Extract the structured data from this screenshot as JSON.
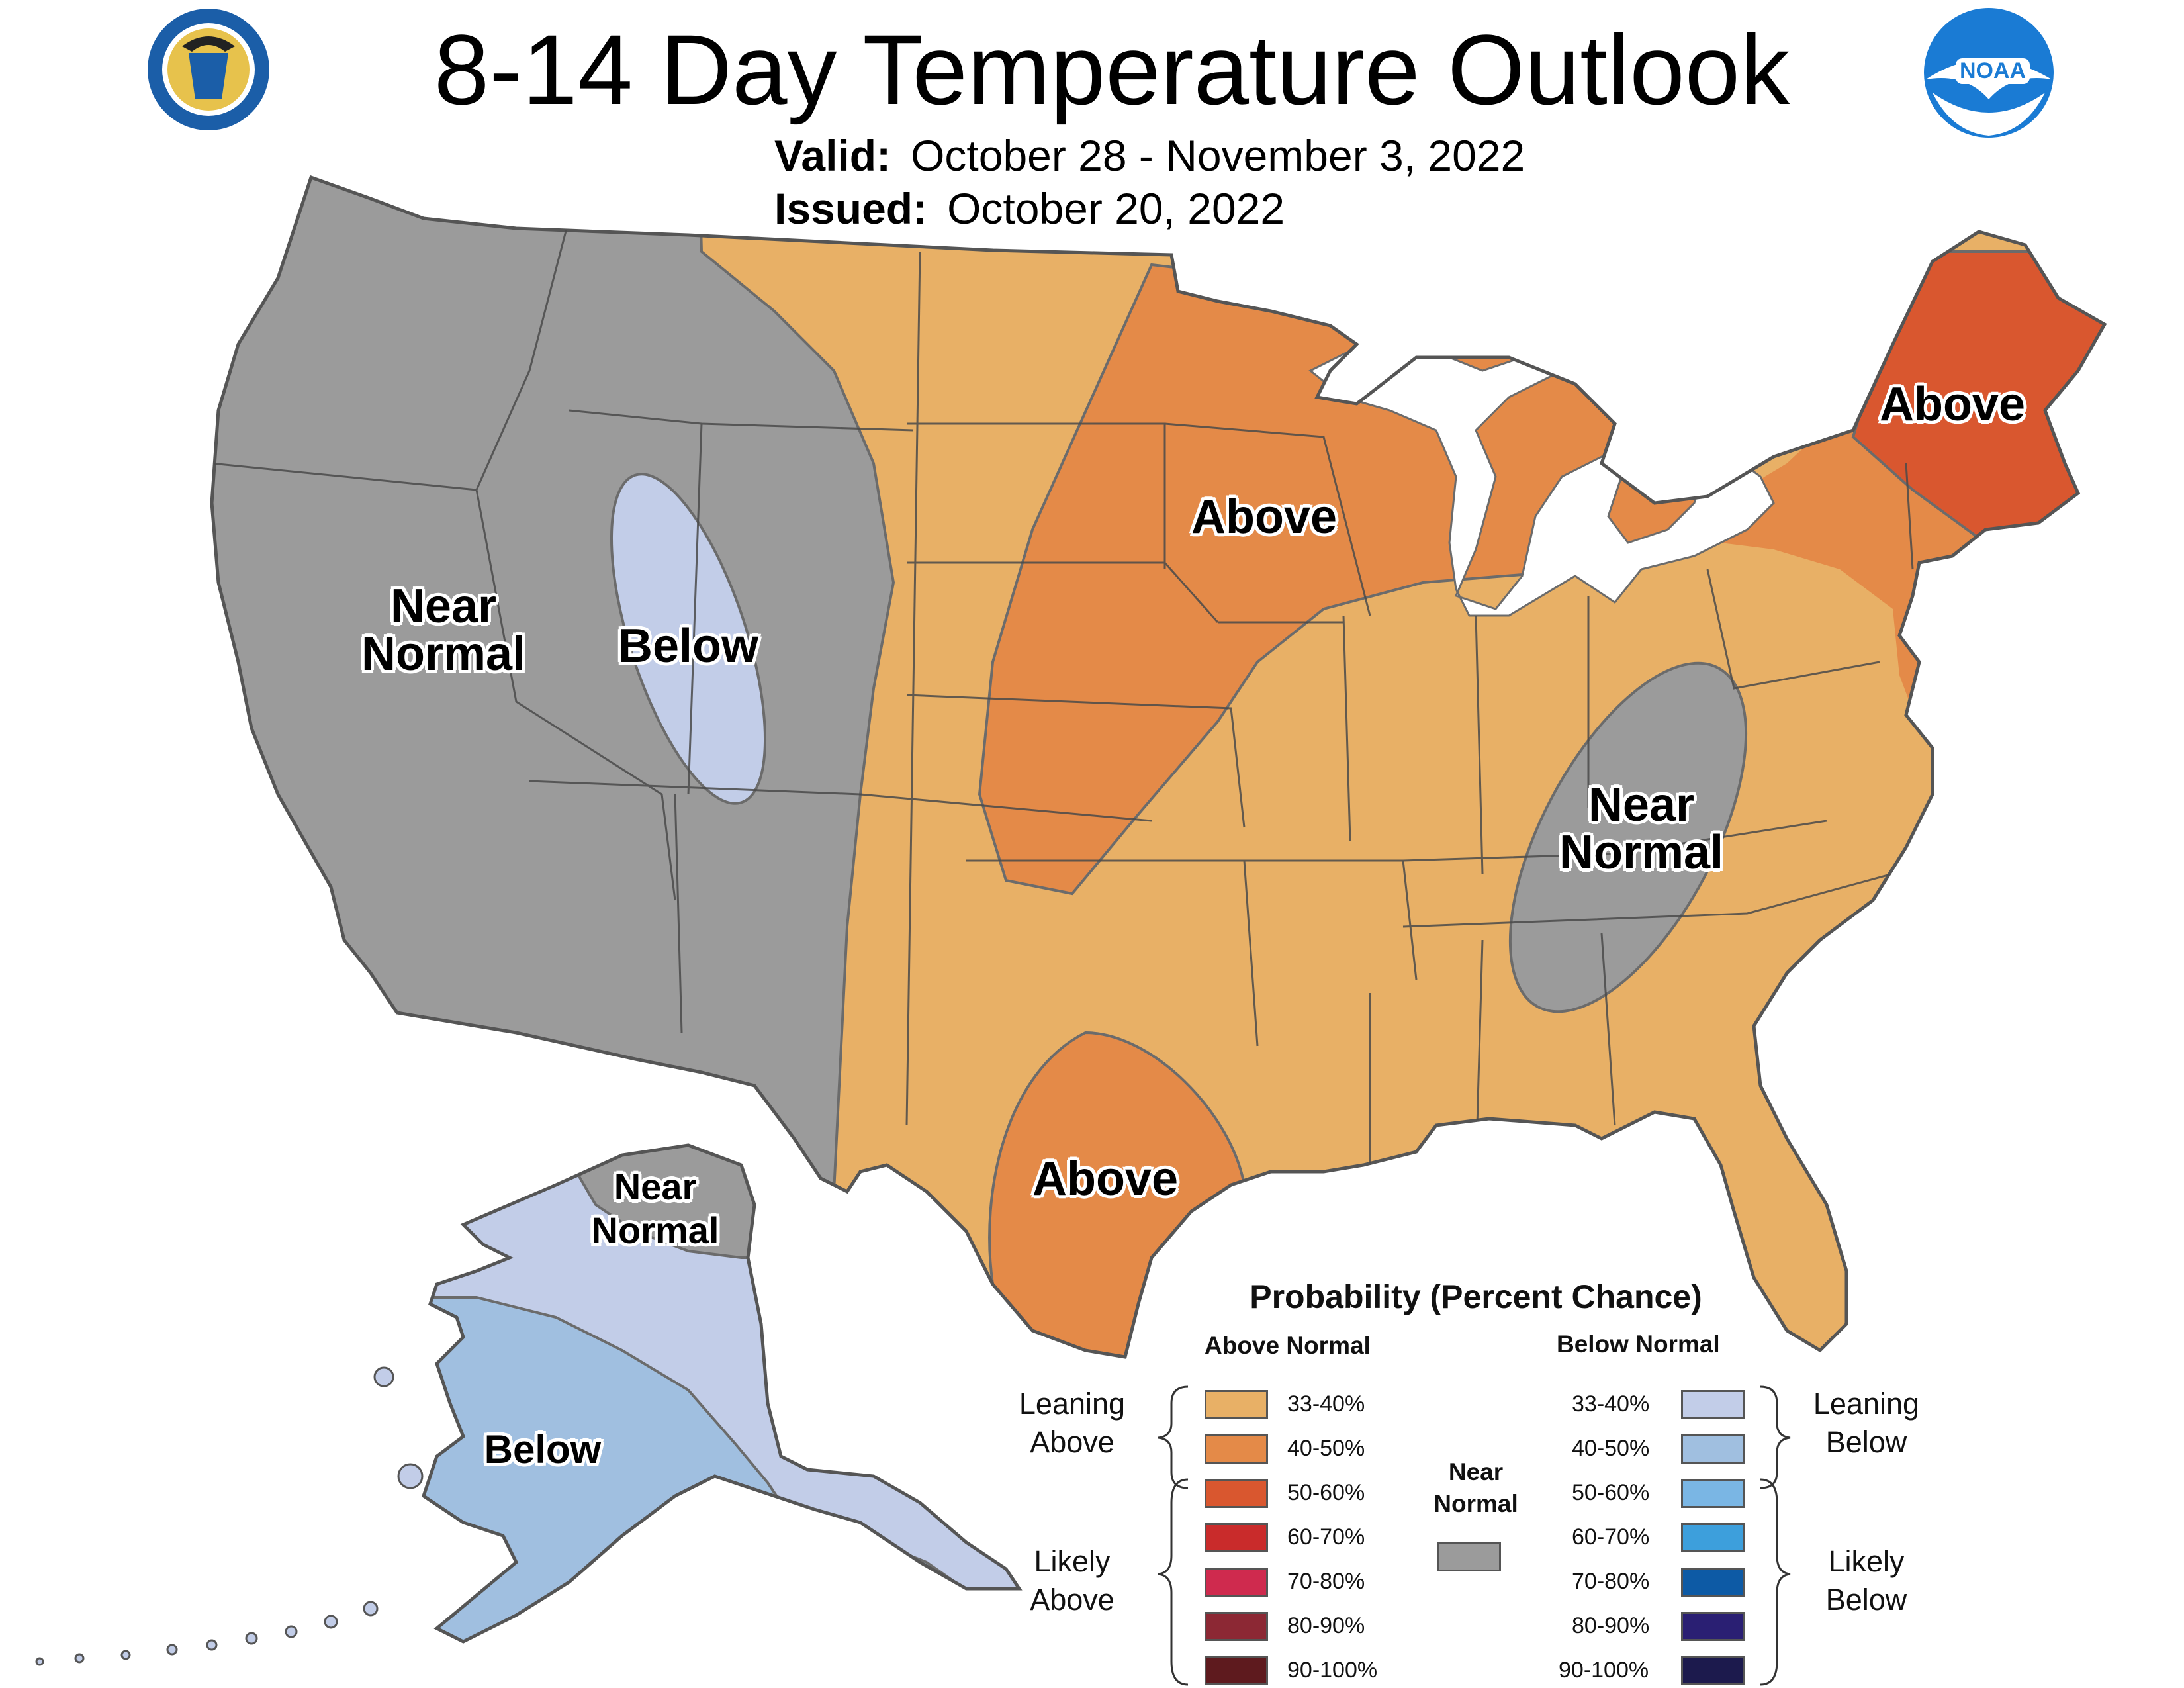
{
  "title": "8-14 Day Temperature Outlook",
  "valid": {
    "label": "Valid:",
    "value": "October 28 - November 3, 2022"
  },
  "issued": {
    "label": "Issued:",
    "value": "October 20, 2022"
  },
  "logos": {
    "left": "doc-seal-icon",
    "right": "noaa-logo-icon",
    "noaa_text": "NOAA"
  },
  "map_labels": {
    "west_near_normal": [
      "Near",
      "Normal"
    ],
    "rockies_below": "Below",
    "midwest_above": "Above",
    "northeast_above": "Above",
    "appalachia_near_normal": [
      "Near",
      "Normal"
    ],
    "texas_above": "Above",
    "alaska_near_normal": [
      "Near",
      "Normal"
    ],
    "alaska_below": "Below"
  },
  "legend": {
    "title": "Probability (Percent Chance)",
    "above_header": "Above Normal",
    "below_header": "Below Normal",
    "above_levels": [
      {
        "label": "33-40%",
        "color": "#e8b066"
      },
      {
        "label": "40-50%",
        "color": "#e48a48"
      },
      {
        "label": "50-60%",
        "color": "#d9572f"
      },
      {
        "label": "60-70%",
        "color": "#c92b2b"
      },
      {
        "label": "70-80%",
        "color": "#cf2a4e"
      },
      {
        "label": "80-90%",
        "color": "#8c2834"
      },
      {
        "label": "90-100%",
        "color": "#5e1a1e"
      }
    ],
    "below_levels": [
      {
        "label": "33-40%",
        "color": "#c2cde8"
      },
      {
        "label": "40-50%",
        "color": "#a0bfe0"
      },
      {
        "label": "50-60%",
        "color": "#7ab6e4"
      },
      {
        "label": "60-70%",
        "color": "#3d9fdc"
      },
      {
        "label": "70-80%",
        "color": "#0d5aa5"
      },
      {
        "label": "80-90%",
        "color": "#2a1f73"
      },
      {
        "label": "90-100%",
        "color": "#1c1a4d"
      }
    ],
    "near_normal": {
      "label": [
        "Near",
        "Normal"
      ],
      "color": "#9b9b9b"
    },
    "leaning_above": [
      "Leaning",
      "Above"
    ],
    "likely_above": [
      "Likely",
      "Above"
    ],
    "leaning_below": [
      "Leaning",
      "Below"
    ],
    "likely_below": [
      "Likely",
      "Below"
    ]
  },
  "colors": {
    "near_normal_gray": "#9b9b9b",
    "leaning_above": "#e8b066",
    "above_40_50": "#e48a48",
    "above_50_60": "#d9572f",
    "below_33_40": "#c2cde8",
    "below_40_50": "#a0bfe0"
  }
}
